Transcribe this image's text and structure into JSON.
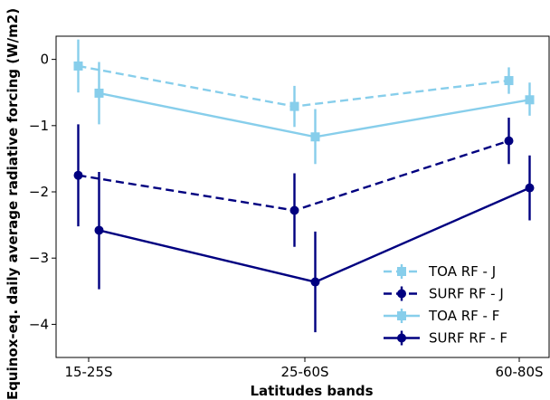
{
  "chart_data": {
    "type": "line",
    "title": "",
    "xlabel": "Latitudes bands",
    "ylabel": "Equinox-eq. daily average radiative forcing (W/m2)",
    "categories": [
      "15-25S",
      "25-60S",
      "60-80S"
    ],
    "ylim": [
      -4.5,
      0.35
    ],
    "yticks": [
      "0",
      "−1",
      "−2",
      "−3",
      "−4"
    ],
    "grid": false,
    "legend_position": "lower-right",
    "series": [
      {
        "name": "TOA RF - J",
        "color": "#87ceeb",
        "dash": true,
        "marker": "square",
        "x_offset": -1,
        "values": [
          -0.1,
          -0.71,
          -0.32
        ],
        "err_low": [
          -0.5,
          -1.02,
          -0.52
        ],
        "err_high": [
          0.3,
          -0.4,
          -0.12
        ]
      },
      {
        "name": "SURF RF - J",
        "color": "#000080",
        "dash": true,
        "marker": "circle",
        "x_offset": -1,
        "values": [
          -1.75,
          -2.28,
          -1.23
        ],
        "err_low": [
          -2.52,
          -2.83,
          -1.58
        ],
        "err_high": [
          -0.98,
          -1.72,
          -0.88
        ]
      },
      {
        "name": "TOA RF - F",
        "color": "#87ceeb",
        "dash": false,
        "marker": "square",
        "x_offset": 1,
        "values": [
          -0.51,
          -1.17,
          -0.61
        ],
        "err_low": [
          -0.98,
          -1.58,
          -0.85
        ],
        "err_high": [
          -0.04,
          -0.75,
          -0.35
        ]
      },
      {
        "name": "SURF RF - F",
        "color": "#000080",
        "dash": false,
        "marker": "circle",
        "x_offset": 1,
        "values": [
          -2.58,
          -3.36,
          -1.94
        ],
        "err_low": [
          -3.47,
          -4.12,
          -2.43
        ],
        "err_high": [
          -1.7,
          -2.6,
          -1.45
        ]
      }
    ]
  }
}
